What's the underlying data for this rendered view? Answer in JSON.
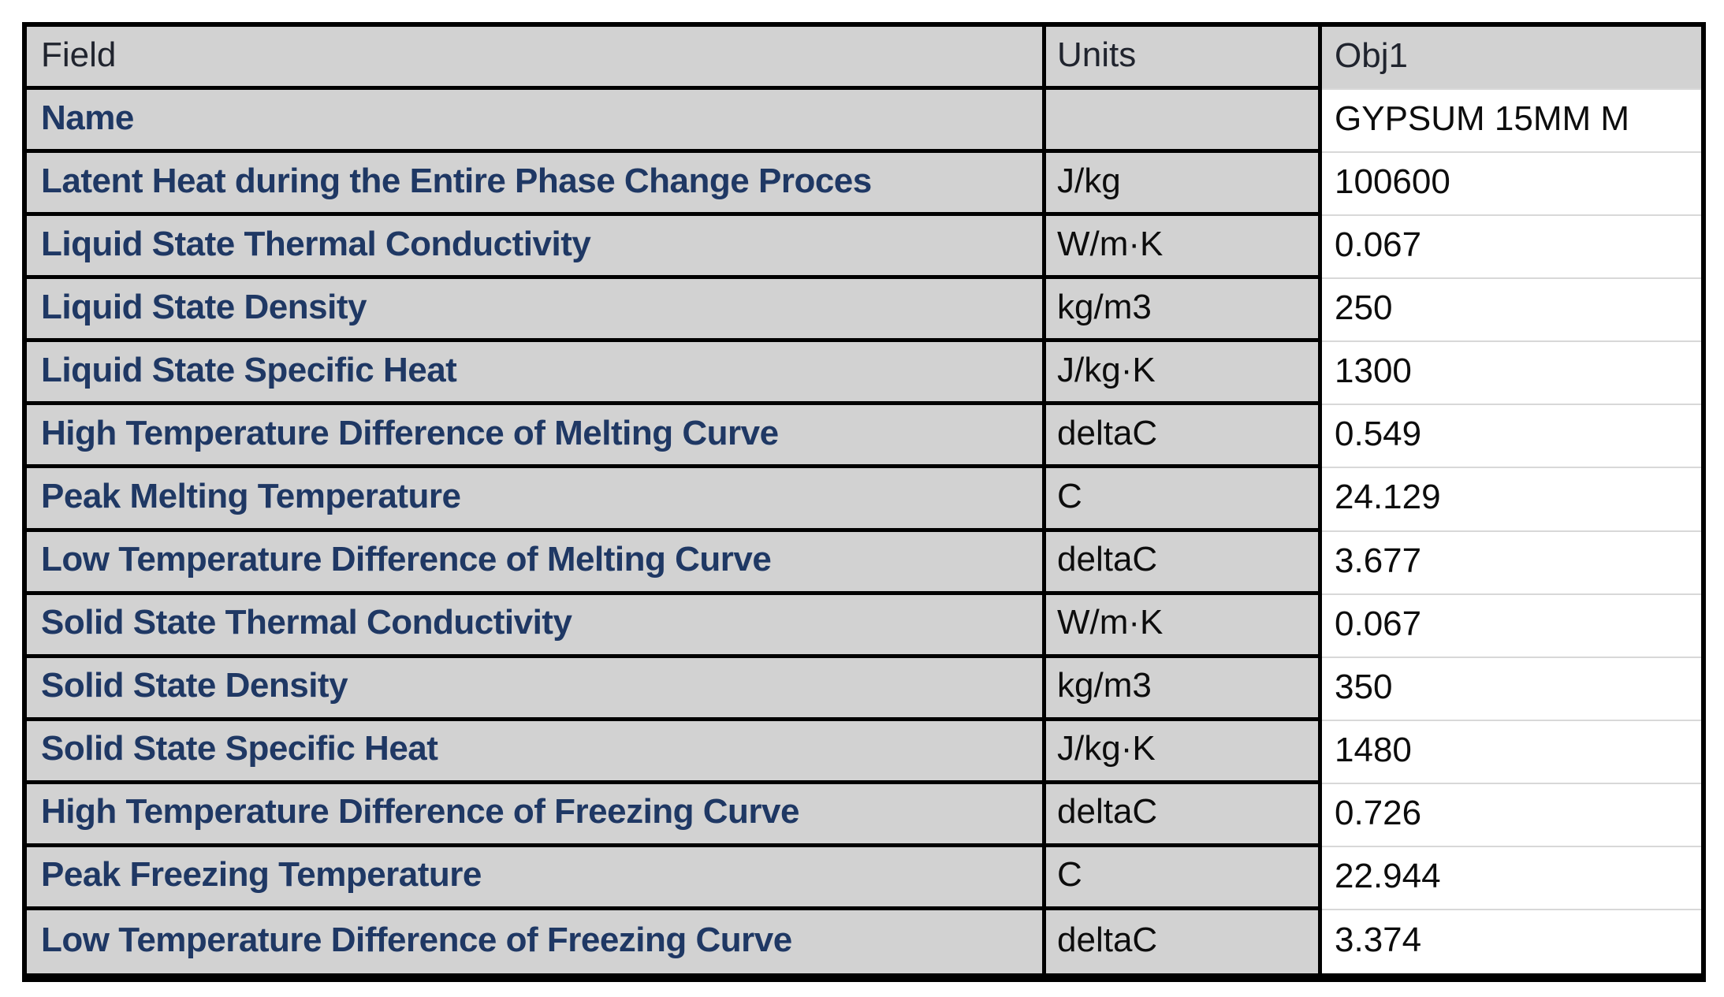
{
  "table": {
    "columns": [
      "Field",
      "Units",
      "Obj1"
    ],
    "rows": [
      {
        "field": "Name",
        "units": "",
        "value": "GYPSUM 15MM M"
      },
      {
        "field": "Latent Heat during the Entire Phase Change Proces",
        "units": "J/kg",
        "value": "100600"
      },
      {
        "field": "Liquid State Thermal Conductivity",
        "units": "W/m·K",
        "value": "0.067"
      },
      {
        "field": "Liquid State Density",
        "units": "kg/m3",
        "value": "250"
      },
      {
        "field": "Liquid State Specific Heat",
        "units": "J/kg·K",
        "value": "1300"
      },
      {
        "field": "High Temperature Difference of Melting Curve",
        "units": "deltaC",
        "value": "0.549"
      },
      {
        "field": "Peak Melting Temperature",
        "units": "C",
        "value": "24.129"
      },
      {
        "field": "Low Temperature Difference of Melting Curve",
        "units": "deltaC",
        "value": "3.677"
      },
      {
        "field": "Solid State Thermal Conductivity",
        "units": "W/m·K",
        "value": "0.067"
      },
      {
        "field": "Solid State Density",
        "units": "kg/m3",
        "value": "350"
      },
      {
        "field": "Solid State Specific Heat",
        "units": "J/kg·K",
        "value": "1480"
      },
      {
        "field": "High Temperature Difference of Freezing Curve",
        "units": "deltaC",
        "value": "0.726"
      },
      {
        "field": "Peak Freezing Temperature",
        "units": "C",
        "value": "22.944"
      },
      {
        "field": "Low Temperature Difference of Freezing Curve",
        "units": "deltaC",
        "value": "3.374"
      }
    ]
  },
  "colors": {
    "cell-bg": "#d2d2d2",
    "field-color": "#1f3864",
    "header-color": "#20242e",
    "value-color": "#0d0d0d",
    "grid-black": "#000000",
    "value-sep": "#d8d8d8",
    "page-bg": "#ffffff"
  }
}
